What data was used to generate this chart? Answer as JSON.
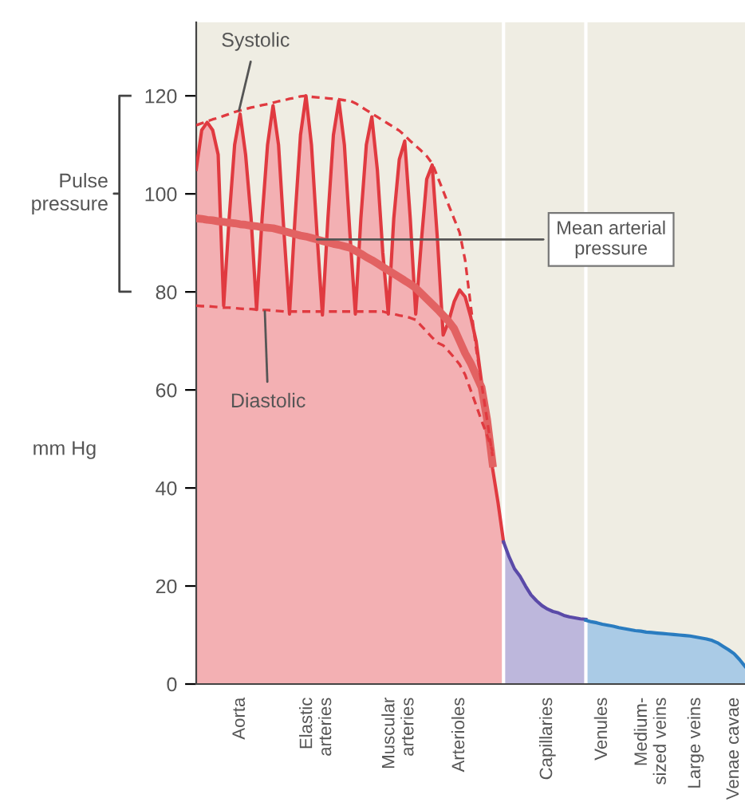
{
  "chart_data": {
    "type": "area",
    "ylabel": "mm Hg",
    "categories": [
      null,
      null,
      null,
      null,
      null,
      null,
      null,
      null,
      "Aorta",
      null,
      null,
      null,
      null,
      null,
      null,
      null,
      null,
      null,
      null,
      null,
      null,
      null,
      "Elastic\narteries",
      null,
      null,
      null,
      null,
      null,
      null,
      null,
      null,
      null,
      null,
      null,
      null,
      null,
      null,
      "Muscular\narteries",
      null,
      null,
      null,
      null,
      null,
      null,
      null,
      null,
      null,
      null,
      "Arterioles",
      null,
      null,
      null,
      null,
      null,
      null,
      null,
      null,
      null,
      null,
      null,
      null,
      null,
      null,
      null,
      "Capillaries",
      null,
      null,
      null,
      null,
      null,
      null,
      null,
      null,
      null,
      "Venules",
      null,
      null,
      null,
      null,
      null,
      null,
      null,
      null,
      "Medium-\nsized veins",
      null,
      null,
      null,
      null,
      null,
      null,
      null,
      "Large veins",
      null,
      null,
      null,
      null,
      null,
      null,
      "Venae cavae",
      null,
      null
    ],
    "ylim": [
      0,
      135
    ],
    "yticks": [
      0,
      20,
      40,
      60,
      80,
      100,
      120
    ],
    "grid": false,
    "series": [
      {
        "color": "#e03a40",
        "values": [
          105,
          113,
          114.6,
          113,
          108,
          77.2,
          95,
          110,
          116.3,
          108,
          95,
          76.4,
          95,
          110,
          118,
          110,
          92,
          75.5,
          95,
          112,
          120,
          110,
          92,
          75.3,
          95,
          112,
          119,
          110,
          92,
          75.5,
          95,
          110,
          115.7,
          105,
          88,
          75.5,
          95,
          107,
          110.8,
          95,
          75.5,
          90,
          103,
          105.9,
          90,
          71.2,
          74,
          78,
          80.4,
          79,
          75,
          70,
          61.5,
          53,
          44,
          37,
          29,
          null,
          null,
          null,
          null,
          null,
          null,
          null,
          null,
          null,
          null,
          null,
          null,
          null,
          null,
          null,
          null,
          null,
          null,
          null,
          null,
          null,
          null,
          null,
          null,
          null,
          null,
          null,
          null,
          null,
          null,
          null,
          null,
          null,
          null,
          null,
          null,
          null,
          null,
          null,
          null,
          null,
          null,
          null,
          null
        ]
      },
      {
        "color": "#5a4aa8",
        "values": [
          null,
          null,
          null,
          null,
          null,
          null,
          null,
          null,
          null,
          null,
          null,
          null,
          null,
          null,
          null,
          null,
          null,
          null,
          null,
          null,
          null,
          null,
          null,
          null,
          null,
          null,
          null,
          null,
          null,
          null,
          null,
          null,
          null,
          null,
          null,
          null,
          null,
          null,
          null,
          null,
          null,
          null,
          null,
          null,
          null,
          null,
          null,
          null,
          null,
          null,
          null,
          null,
          null,
          null,
          null,
          null,
          29,
          26,
          23.5,
          22,
          20,
          18.2,
          17,
          16,
          15.3,
          14.8,
          14.5,
          14,
          13.7,
          13.5,
          13.3,
          13.2,
          null,
          null,
          null,
          null,
          null,
          null,
          null,
          null,
          null,
          null,
          null,
          null,
          null,
          null,
          null,
          null,
          null,
          null,
          null,
          null,
          null,
          null,
          null,
          null,
          null,
          null,
          null,
          null,
          null
        ]
      },
      {
        "color": "#2a7cc0",
        "values": [
          null,
          null,
          null,
          null,
          null,
          null,
          null,
          null,
          null,
          null,
          null,
          null,
          null,
          null,
          null,
          null,
          null,
          null,
          null,
          null,
          null,
          null,
          null,
          null,
          null,
          null,
          null,
          null,
          null,
          null,
          null,
          null,
          null,
          null,
          null,
          null,
          null,
          null,
          null,
          null,
          null,
          null,
          null,
          null,
          null,
          null,
          null,
          null,
          null,
          null,
          null,
          null,
          null,
          null,
          null,
          null,
          null,
          null,
          null,
          null,
          null,
          null,
          null,
          null,
          null,
          null,
          null,
          null,
          null,
          null,
          null,
          13.0,
          12.7,
          12.5,
          12.2,
          12,
          11.8,
          11.5,
          11.3,
          11.1,
          10.9,
          10.8,
          10.6,
          10.5,
          10.4,
          10.3,
          10.2,
          10.1,
          10.0,
          9.9,
          9.8,
          9.6,
          9.4,
          9.2,
          8.9,
          8.4,
          7.7,
          7.0,
          6.2,
          5.0,
          3.6
        ]
      },
      {
        "type": "line",
        "color": "#e26262",
        "line_style": "solid",
        "values": [
          95,
          94.9,
          94.7,
          94.6,
          94.4,
          94.3,
          94.1,
          94,
          93.8,
          93.7,
          93.5,
          93.4,
          93.2,
          93.1,
          93.0,
          92.7,
          92.4,
          92.1,
          91.8,
          91.5,
          91.3,
          91,
          90.7,
          90.4,
          90.1,
          89.8,
          89.6,
          89.3,
          89,
          88.4,
          87.8,
          87.1,
          86.5,
          85.8,
          85.1,
          84.4,
          83.7,
          83,
          82.3,
          81.6,
          80.8,
          79.7,
          78.6,
          77.5,
          76.4,
          75.2,
          74,
          72.5,
          70,
          67.5,
          65.5,
          63,
          60.5,
          54,
          45,
          null,
          null,
          null,
          null,
          null,
          null,
          null,
          null,
          null,
          null,
          null,
          null,
          null,
          null,
          null,
          null,
          null,
          null,
          null,
          null,
          null,
          null,
          null,
          null,
          null,
          null,
          null,
          null,
          null,
          null,
          null,
          null,
          null,
          null,
          null,
          null,
          null,
          null,
          null,
          null,
          null,
          null,
          null,
          null,
          null,
          null
        ]
      },
      {
        "type": "line",
        "color": "#e03a40",
        "line_style": "dashed",
        "values": [
          114,
          114.4,
          114.8,
          115.2,
          115.5,
          115.9,
          116.3,
          116.7,
          117,
          117.3,
          117.6,
          117.8,
          118.1,
          118.3,
          118.6,
          118.9,
          119.1,
          119.4,
          119.6,
          119.9,
          120,
          119.8,
          119.7,
          119.6,
          119.5,
          119.4,
          119.3,
          119.1,
          119,
          118.5,
          117.8,
          117.1,
          116.4,
          115.7,
          115,
          114.3,
          113.6,
          112.9,
          111.9,
          110.8,
          109.8,
          108.8,
          107.7,
          106.2,
          103.4,
          100.6,
          97.7,
          94.9,
          92.1,
          86.5,
          77.4,
          68.5,
          61.3,
          53.9,
          46.5,
          null,
          null,
          null,
          null,
          null,
          null,
          null,
          null,
          null,
          null,
          null,
          null,
          null,
          null,
          null,
          null,
          null,
          null,
          null,
          null,
          null,
          null,
          null,
          null,
          null,
          null,
          null,
          null,
          null,
          null,
          null,
          null,
          null,
          null,
          null,
          null,
          null,
          null,
          null,
          null,
          null,
          null,
          null,
          null,
          null,
          null
        ]
      },
      {
        "type": "line",
        "color": "#e03a40",
        "line_style": "dashed",
        "values": [
          77.2,
          77.1,
          77.1,
          77,
          76.9,
          76.8,
          76.8,
          76.7,
          76.6,
          76.5,
          76.5,
          76.4,
          76.3,
          76.3,
          76.2,
          76.1,
          76,
          76,
          76,
          76,
          76,
          76,
          76,
          76,
          76,
          76,
          76,
          76,
          76,
          76,
          76,
          76,
          76,
          76,
          76,
          75.7,
          75.5,
          75.2,
          75,
          74.7,
          74.3,
          73.1,
          71.9,
          70.7,
          69.6,
          69.1,
          67.9,
          66.6,
          65.2,
          63.1,
          60,
          56.9,
          53.7,
          50.8,
          47.5,
          null,
          null,
          null,
          null,
          null,
          null,
          null,
          null,
          null,
          null,
          null,
          null,
          null,
          null,
          null,
          null,
          null,
          null,
          null,
          null,
          null,
          null,
          null,
          null,
          null,
          null,
          null,
          null,
          null,
          null,
          null,
          null,
          null,
          null,
          null,
          null,
          null,
          null,
          null,
          null,
          null,
          null,
          null,
          null,
          null,
          null
        ]
      }
    ],
    "annotations": [
      {
        "text": "Systolic",
        "y": 117
      },
      {
        "text": "Diastolic",
        "y": 76
      },
      {
        "text": "Mean arterial\npressure",
        "x": "Elastic\narteries",
        "y": 90.7
      },
      "Pulse\npressure"
    ]
  }
}
